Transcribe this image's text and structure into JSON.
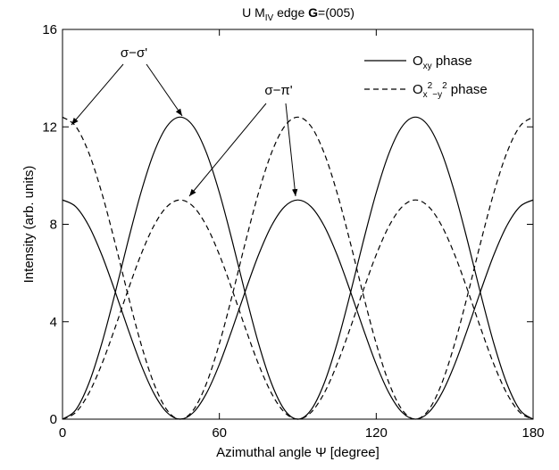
{
  "chart_data": {
    "type": "line",
    "title": {
      "parts": [
        "U M",
        "IV",
        " edge ",
        "G",
        "=(005)"
      ],
      "styles": [
        "",
        "sub",
        "",
        "bold",
        ""
      ]
    },
    "xlabel": "Azimuthal angle Ψ [degree]",
    "ylabel": "Intensity (arb. units)",
    "xlim": [
      0,
      180
    ],
    "ylim": [
      0,
      16
    ],
    "xticks": [
      0,
      60,
      120,
      180
    ],
    "yticks": [
      0,
      4,
      8,
      12,
      16
    ],
    "legend": "upper right",
    "annotations": [
      "σ−σ'",
      "σ−π'"
    ],
    "x": [
      0,
      5,
      10,
      15,
      20,
      25,
      30,
      35,
      40,
      45,
      50,
      55,
      60,
      65,
      70,
      75,
      80,
      85,
      90,
      95,
      100,
      105,
      110,
      115,
      120,
      125,
      130,
      135,
      140,
      145,
      150,
      155,
      160,
      165,
      170,
      175,
      180
    ],
    "series": [
      {
        "name": {
          "parts": [
            "O",
            "xy",
            " phase"
          ],
          "styles": [
            "",
            "sub",
            ""
          ]
        },
        "color": "#000000",
        "dashed": false,
        "curves": [
          {
            "values": [
              0,
              0.37,
              1.45,
              3.1,
              5.12,
              7.28,
              9.3,
              10.95,
              12.03,
              12.4,
              12.03,
              10.95,
              9.3,
              7.28,
              5.12,
              3.1,
              1.45,
              0.37,
              0,
              0.37,
              1.45,
              3.1,
              5.12,
              7.28,
              9.3,
              10.95,
              12.03,
              12.4,
              12.03,
              10.95,
              9.3,
              7.28,
              5.12,
              3.1,
              1.45,
              0.37,
              0
            ]
          },
          {
            "values": [
              9,
              8.73,
              7.95,
              6.75,
              5.28,
              3.72,
              2.25,
              1.05,
              0.27,
              0,
              0.27,
              1.05,
              2.25,
              3.72,
              5.28,
              6.75,
              7.95,
              8.73,
              9,
              8.73,
              7.95,
              6.75,
              5.28,
              3.72,
              2.25,
              1.05,
              0.27,
              0,
              0.27,
              1.05,
              2.25,
              3.72,
              5.28,
              6.75,
              7.95,
              8.73,
              9
            ]
          }
        ]
      },
      {
        "name": {
          "parts": [
            "O",
            "x",
            "2",
            "−y",
            "2",
            " phase"
          ],
          "styles": [
            "",
            "sub",
            "sup",
            "sub",
            "sup",
            ""
          ]
        },
        "color": "#000000",
        "dashed": true,
        "curves": [
          {
            "values": [
              12.4,
              12.03,
              10.95,
              9.3,
              7.28,
              5.12,
              3.1,
              1.45,
              0.37,
              0,
              0.37,
              1.45,
              3.1,
              5.12,
              7.28,
              9.3,
              10.95,
              12.03,
              12.4,
              12.03,
              10.95,
              9.3,
              7.28,
              5.12,
              3.1,
              1.45,
              0.37,
              0,
              0.37,
              1.45,
              3.1,
              5.12,
              7.28,
              9.3,
              10.95,
              12.03,
              12.4
            ]
          },
          {
            "values": [
              0,
              0.27,
              1.05,
              2.25,
              3.72,
              5.28,
              6.75,
              7.95,
              8.73,
              9,
              8.73,
              7.95,
              6.75,
              5.28,
              3.72,
              2.25,
              1.05,
              0.27,
              0,
              0.27,
              1.05,
              2.25,
              3.72,
              5.28,
              6.75,
              7.95,
              8.73,
              9,
              8.73,
              7.95,
              6.75,
              5.28,
              3.72,
              2.25,
              1.05,
              0.27,
              0
            ]
          }
        ]
      }
    ]
  }
}
